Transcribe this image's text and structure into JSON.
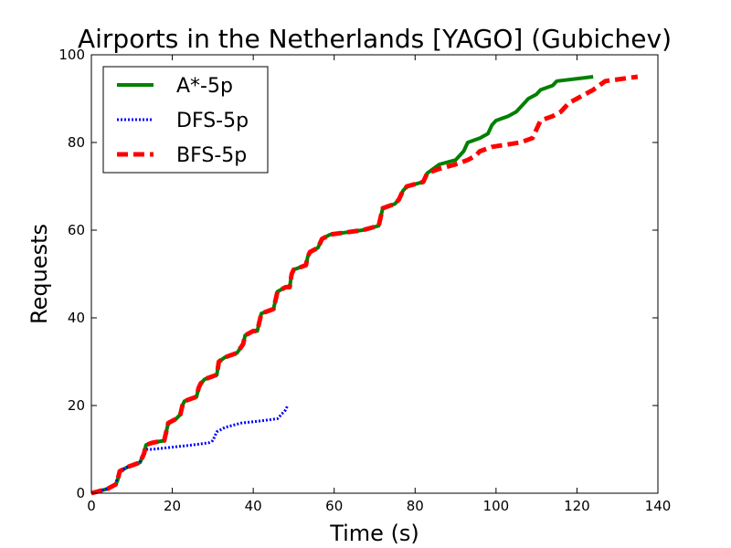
{
  "chart_data": {
    "type": "line",
    "title": "Airports in the Netherlands [YAGO] (Gubichev)",
    "xlabel": "Time (s)",
    "ylabel": "Requests",
    "xlim": [
      0,
      140
    ],
    "ylim": [
      0,
      100
    ],
    "xticks": [
      "0",
      "20",
      "40",
      "60",
      "80",
      "100",
      "120",
      "140"
    ],
    "yticks": [
      "0",
      "20",
      "40",
      "60",
      "80",
      "100"
    ],
    "legend_position": "top-left",
    "series": [
      {
        "name": "A*-5p",
        "color": "#008000",
        "style": "solid",
        "points": [
          [
            0,
            0
          ],
          [
            4,
            1
          ],
          [
            6,
            2
          ],
          [
            6.5,
            3
          ],
          [
            7,
            5
          ],
          [
            9,
            6
          ],
          [
            12,
            7
          ],
          [
            13,
            9
          ],
          [
            13.5,
            11
          ],
          [
            15,
            11.5
          ],
          [
            18,
            12
          ],
          [
            18.5,
            14
          ],
          [
            19,
            16
          ],
          [
            21,
            17
          ],
          [
            22,
            18
          ],
          [
            22.5,
            20
          ],
          [
            23,
            21
          ],
          [
            26,
            22
          ],
          [
            26.5,
            24
          ],
          [
            27,
            25
          ],
          [
            28,
            26
          ],
          [
            31,
            27
          ],
          [
            31.5,
            30
          ],
          [
            33,
            31
          ],
          [
            36,
            32
          ],
          [
            37.5,
            34
          ],
          [
            38,
            36
          ],
          [
            40,
            37
          ],
          [
            41,
            37
          ],
          [
            41.5,
            39
          ],
          [
            42,
            41
          ],
          [
            45,
            42
          ],
          [
            45.5,
            44
          ],
          [
            46,
            46
          ],
          [
            48,
            47
          ],
          [
            49,
            47
          ],
          [
            49.5,
            50
          ],
          [
            50,
            51
          ],
          [
            53,
            52
          ],
          [
            53.5,
            54
          ],
          [
            54,
            55
          ],
          [
            56,
            56
          ],
          [
            57,
            58
          ],
          [
            59,
            59
          ],
          [
            67,
            60
          ],
          [
            71,
            61
          ],
          [
            71.5,
            63
          ],
          [
            72,
            65
          ],
          [
            75,
            66
          ],
          [
            76,
            67
          ],
          [
            77,
            69
          ],
          [
            78,
            70
          ],
          [
            82,
            71
          ],
          [
            82.5,
            72
          ],
          [
            83,
            73
          ],
          [
            86,
            75
          ],
          [
            90,
            76
          ],
          [
            91,
            77
          ],
          [
            92,
            78
          ],
          [
            93,
            80
          ],
          [
            96,
            81
          ],
          [
            98,
            82
          ],
          [
            99,
            84
          ],
          [
            100,
            85
          ],
          [
            103,
            86
          ],
          [
            105,
            87
          ],
          [
            106,
            88
          ],
          [
            107,
            89
          ],
          [
            108,
            90
          ],
          [
            110,
            91
          ],
          [
            111,
            92
          ],
          [
            114,
            93
          ],
          [
            115,
            94
          ],
          [
            124,
            95
          ]
        ]
      },
      {
        "name": "DFS-5p",
        "color": "#0000ff",
        "style": "dotted",
        "points": [
          [
            0,
            0
          ],
          [
            4,
            1
          ],
          [
            6,
            2
          ],
          [
            6.5,
            4
          ],
          [
            7,
            5
          ],
          [
            9,
            6
          ],
          [
            12,
            7
          ],
          [
            13,
            9
          ],
          [
            13.5,
            10
          ],
          [
            15,
            10
          ],
          [
            20,
            10.5
          ],
          [
            25,
            11
          ],
          [
            29,
            11.5
          ],
          [
            30,
            12
          ],
          [
            31,
            14
          ],
          [
            33,
            15
          ],
          [
            37,
            16
          ],
          [
            42,
            16.5
          ],
          [
            46,
            17
          ],
          [
            47,
            18
          ],
          [
            48,
            19
          ],
          [
            48.5,
            20
          ]
        ]
      },
      {
        "name": "BFS-5p",
        "color": "#ff0000",
        "style": "dashed",
        "points": [
          [
            0,
            0
          ],
          [
            4,
            1
          ],
          [
            6,
            2
          ],
          [
            6.5,
            3
          ],
          [
            7,
            5
          ],
          [
            9,
            6
          ],
          [
            12,
            7
          ],
          [
            13,
            9
          ],
          [
            13.5,
            11
          ],
          [
            15,
            11.5
          ],
          [
            18,
            12
          ],
          [
            18.5,
            14
          ],
          [
            19,
            16
          ],
          [
            21,
            17
          ],
          [
            22,
            18
          ],
          [
            22.5,
            20
          ],
          [
            23,
            21
          ],
          [
            26,
            22
          ],
          [
            26.5,
            24
          ],
          [
            27,
            25
          ],
          [
            28,
            26
          ],
          [
            31,
            27
          ],
          [
            31.5,
            30
          ],
          [
            33,
            31
          ],
          [
            36,
            32
          ],
          [
            37.5,
            34
          ],
          [
            38,
            36
          ],
          [
            40,
            37
          ],
          [
            41,
            37
          ],
          [
            41.5,
            39
          ],
          [
            42,
            41
          ],
          [
            45,
            42
          ],
          [
            45.5,
            44
          ],
          [
            46,
            46
          ],
          [
            48,
            47
          ],
          [
            49,
            47
          ],
          [
            49.5,
            50
          ],
          [
            50,
            51
          ],
          [
            53,
            52
          ],
          [
            53.5,
            54
          ],
          [
            54,
            55
          ],
          [
            56,
            56
          ],
          [
            57,
            58
          ],
          [
            59,
            59
          ],
          [
            67,
            60
          ],
          [
            71,
            61
          ],
          [
            71.5,
            63
          ],
          [
            72,
            65
          ],
          [
            75,
            66
          ],
          [
            76,
            67
          ],
          [
            77,
            69
          ],
          [
            78,
            70
          ],
          [
            82,
            71
          ],
          [
            82.5,
            72
          ],
          [
            83,
            73
          ],
          [
            86,
            74
          ],
          [
            90,
            75
          ],
          [
            93,
            76
          ],
          [
            95,
            77
          ],
          [
            96,
            78
          ],
          [
            99,
            79
          ],
          [
            106,
            80
          ],
          [
            109,
            81
          ],
          [
            110,
            83
          ],
          [
            111,
            85
          ],
          [
            114,
            86
          ],
          [
            116,
            87
          ],
          [
            118,
            89
          ],
          [
            120,
            90
          ],
          [
            124,
            92
          ],
          [
            127,
            94
          ],
          [
            135,
            95
          ]
        ]
      }
    ]
  }
}
